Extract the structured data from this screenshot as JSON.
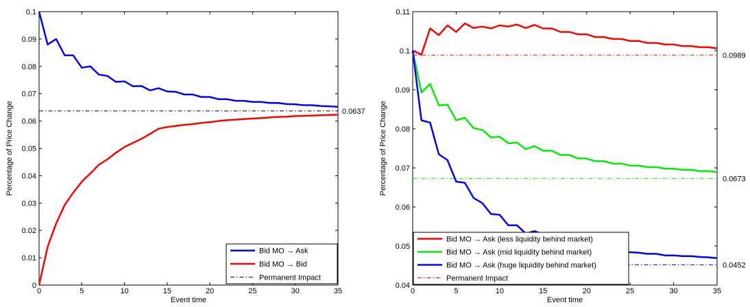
{
  "chart_data": [
    {
      "type": "line",
      "title": "",
      "xlabel": "Event time",
      "ylabel": "Percentage of Price Change",
      "xlim": [
        0,
        35
      ],
      "ylim": [
        0,
        0.1
      ],
      "xticks": [
        "0",
        "5",
        "10",
        "15",
        "20",
        "25",
        "30",
        "35"
      ],
      "yticks": [
        "0",
        "0.01",
        "0.02",
        "0.03",
        "0.04",
        "0.05",
        "0.06",
        "0.07",
        "0.08",
        "0.09",
        "0.1"
      ],
      "grid": false,
      "legend_position": "bottom-right",
      "x": [
        0,
        1,
        2,
        3,
        4,
        5,
        6,
        7,
        8,
        9,
        10,
        11,
        12,
        13,
        14,
        15,
        16,
        17,
        18,
        19,
        20,
        21,
        22,
        23,
        24,
        25,
        26,
        27,
        28,
        29,
        30,
        31,
        32,
        33,
        34,
        35
      ],
      "series": [
        {
          "name": "Bid MO → Ask",
          "color": "#0000ff",
          "values": [
            0.1,
            0.088,
            0.09,
            0.084,
            0.084,
            0.0795,
            0.08,
            0.077,
            0.0765,
            0.0743,
            0.0745,
            0.0727,
            0.0728,
            0.0712,
            0.072,
            0.0708,
            0.0707,
            0.0697,
            0.0697,
            0.0688,
            0.0688,
            0.068,
            0.068,
            0.0674,
            0.0674,
            0.067,
            0.067,
            0.0666,
            0.0666,
            0.0662,
            0.0661,
            0.0658,
            0.0658,
            0.0655,
            0.0654,
            0.0652
          ]
        },
        {
          "name": "Bid MO → Bid",
          "color": "#ff0000",
          "values": [
            0.0,
            0.014,
            0.0225,
            0.0293,
            0.0338,
            0.0378,
            0.0408,
            0.044,
            0.046,
            0.0484,
            0.0505,
            0.052,
            0.0535,
            0.0553,
            0.0572,
            0.0578,
            0.0582,
            0.0586,
            0.0589,
            0.0593,
            0.0596,
            0.06,
            0.0603,
            0.0605,
            0.0607,
            0.0609,
            0.0611,
            0.0613,
            0.0615,
            0.0616,
            0.0618,
            0.0619,
            0.062,
            0.0621,
            0.0622,
            0.0623
          ]
        },
        {
          "name": "Permanent Impact",
          "color": "#000000",
          "dashed": true,
          "constant": 0.0637
        }
      ],
      "annotations": [
        "0.0637"
      ]
    },
    {
      "type": "line",
      "title": "",
      "xlabel": "Event time",
      "ylabel": "Percentage of Price Change",
      "xlim": [
        0,
        35
      ],
      "ylim": [
        0.04,
        0.11
      ],
      "xticks": [
        "0",
        "5",
        "10",
        "15",
        "20",
        "25",
        "30",
        "35"
      ],
      "yticks": [
        "0.04",
        "0.05",
        "0.06",
        "0.07",
        "0.08",
        "0.09",
        "0.1",
        "0.11"
      ],
      "grid": false,
      "legend_position": "bottom-left",
      "x": [
        0,
        1,
        2,
        3,
        4,
        5,
        6,
        7,
        8,
        9,
        10,
        11,
        12,
        13,
        14,
        15,
        16,
        17,
        18,
        19,
        20,
        21,
        22,
        23,
        24,
        25,
        26,
        27,
        28,
        29,
        30,
        31,
        32,
        33,
        34,
        35
      ],
      "series": [
        {
          "name": "Bid MO → Ask (less liquidity behind market)",
          "color": "#ff0000",
          "values": [
            0.1,
            0.099,
            0.1057,
            0.104,
            0.1065,
            0.1048,
            0.107,
            0.1058,
            0.1062,
            0.1057,
            0.1065,
            0.1062,
            0.1067,
            0.1058,
            0.1066,
            0.1057,
            0.1057,
            0.1048,
            0.1048,
            0.1042,
            0.1042,
            0.1035,
            0.1035,
            0.103,
            0.103,
            0.1025,
            0.1025,
            0.102,
            0.102,
            0.1016,
            0.1016,
            0.1012,
            0.1012,
            0.1009,
            0.1009,
            0.1006
          ]
        },
        {
          "name": "Bid MO → Ask (mid liquidity behind market)",
          "color": "#00ee00",
          "values": [
            0.1,
            0.0893,
            0.0915,
            0.086,
            0.0862,
            0.0822,
            0.0828,
            0.0802,
            0.0797,
            0.0778,
            0.078,
            0.0763,
            0.0765,
            0.0748,
            0.0756,
            0.0744,
            0.0744,
            0.0733,
            0.0733,
            0.0724,
            0.0724,
            0.0717,
            0.0717,
            0.0711,
            0.0711,
            0.0706,
            0.0706,
            0.0702,
            0.0702,
            0.0698,
            0.0698,
            0.0695,
            0.0695,
            0.0692,
            0.0692,
            0.0689
          ]
        },
        {
          "name": "Bid MO → Ask (huge liquidity behind market)",
          "color": "#0000ff",
          "values": [
            0.1,
            0.0822,
            0.0816,
            0.0735,
            0.072,
            0.0665,
            0.0662,
            0.0623,
            0.061,
            0.0582,
            0.058,
            0.0553,
            0.0553,
            0.0532,
            0.0538,
            0.053,
            0.0527,
            0.0514,
            0.0514,
            0.0505,
            0.0505,
            0.0498,
            0.0498,
            0.0492,
            0.0488,
            0.0484,
            0.0483,
            0.048,
            0.048,
            0.0476,
            0.0476,
            0.0474,
            0.0474,
            0.0472,
            0.0471,
            0.0469
          ]
        },
        {
          "name": "Permanent Impact",
          "dashed": true,
          "constants": [
            {
              "value": 0.0989,
              "color": "#ff0000",
              "label": "0.0989"
            },
            {
              "value": 0.0673,
              "color": "#00ee00",
              "label": "0.0673"
            },
            {
              "value": 0.0452,
              "color": "#0000ff",
              "label": "0.0452"
            }
          ]
        }
      ]
    }
  ]
}
